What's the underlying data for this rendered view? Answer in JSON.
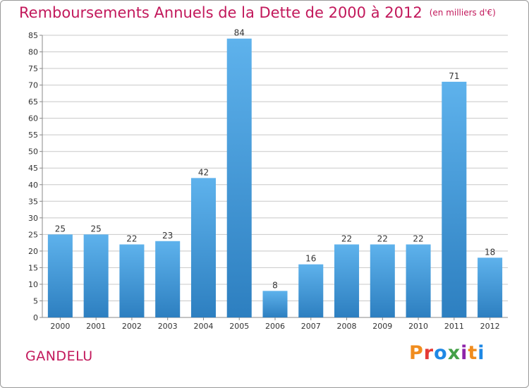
{
  "header": {
    "title": "Remboursements Annuels de la Dette de 2000 à 2012",
    "unit": "(en milliers d'€)"
  },
  "footer": {
    "commune": "GANDELU",
    "logo_text": "Proxiti"
  },
  "colors": {
    "title": "#c2185b",
    "bar_top": "#5eb2ec",
    "bar_bottom": "#2d7fc0",
    "grid": "#c8c8c8",
    "logo": [
      "#f08c1e",
      "#e53935",
      "#1e88e5",
      "#43a047",
      "#8e24aa",
      "#f08c1e",
      "#1e88e5"
    ]
  },
  "chart_data": {
    "type": "bar",
    "categories": [
      "2000",
      "2001",
      "2002",
      "2003",
      "2004",
      "2005",
      "2006",
      "2007",
      "2008",
      "2009",
      "2010",
      "2011",
      "2012"
    ],
    "values": [
      25,
      25,
      22,
      23,
      42,
      84,
      8,
      16,
      22,
      22,
      22,
      71,
      18
    ],
    "ylim": [
      0,
      85
    ],
    "yticks": [
      0,
      5,
      10,
      15,
      20,
      25,
      30,
      35,
      40,
      45,
      50,
      55,
      60,
      65,
      70,
      75,
      80,
      85
    ],
    "grid": true,
    "data_labels": true
  }
}
